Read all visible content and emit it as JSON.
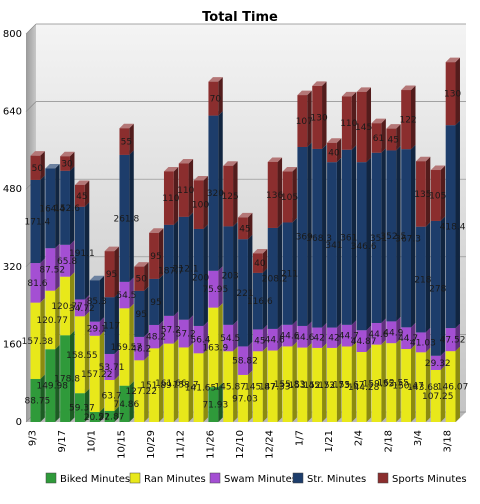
{
  "chart_data": {
    "type": "bar",
    "stacked": true,
    "title": "Total Time",
    "xlabel": "",
    "ylabel": "",
    "ylim": [
      0,
      800
    ],
    "yticks": [
      0,
      160,
      320,
      480,
      640,
      800
    ],
    "grid": true,
    "legend_position": "bottom",
    "tick_labels": [
      "9/3",
      "9/17",
      "10/1",
      "10/15",
      "10/29",
      "11/12",
      "11/26",
      "12/10",
      "12/24",
      "1/7",
      "1/21",
      "2/4",
      "2/18",
      "3/4",
      "3/18"
    ],
    "x": [
      "9/3",
      "9/10",
      "9/17",
      "9/24",
      "10/1",
      "10/8",
      "10/15",
      "10/22",
      "10/29",
      "11/5",
      "11/12",
      "11/19",
      "11/26",
      "12/3",
      "12/10",
      "12/17",
      "12/24",
      "12/31",
      "1/7",
      "1/14",
      "1/21",
      "1/28",
      "2/4",
      "2/11",
      "2/18",
      "2/25",
      "3/4",
      "3/11",
      "3/18"
    ],
    "series": [
      {
        "name": "Biked Minutes",
        "color": "#2f9a3a",
        "values": [
          88.75,
          149.98,
          178.8,
          59.37,
          20.57,
          22.87,
          74.86,
          0,
          0,
          0,
          0,
          0,
          71.93,
          0,
          0,
          0,
          0,
          0,
          0,
          0,
          0,
          0,
          0,
          0,
          0,
          0,
          0,
          0,
          0
        ]
      },
      {
        "name": "Ran Minutes",
        "color": "#e8e81a",
        "values": [
          157.38,
          120.77,
          120.77,
          158.55,
          157.22,
          63.7,
          159.57,
          127.22,
          151.89,
          161.66,
          153.7,
          141.65,
          163.9,
          145.87,
          97.03,
          145.87,
          147.33,
          155.83,
          153.45,
          152.73,
          152.73,
          155.67,
          144.28,
          159.55,
          162.55,
          150.47,
          143.68,
          107.25,
          146.07
        ]
      },
      {
        "name": "Swam Minutes",
        "color": "#a44fd3",
        "values": [
          81.6,
          87.52,
          65.8,
          34.72,
          29.1,
          53.71,
          54.5,
          48.2,
          48.2,
          57.2,
          57.2,
          56.4,
          75.95,
          54.5,
          58.82,
          45.0,
          44.6,
          44.6,
          44.6,
          42.0,
          42.0,
          44.7,
          44.87,
          44.6,
          44.9,
          44.7,
          41.03,
          29.32,
          47.52
        ]
      },
      {
        "name": "Str. Minutes",
        "color": "#1d3d6b",
        "values": [
          171.4,
          164.4,
          152.6,
          191.1,
          85.3,
          117.0,
          261.8,
          95.0,
          95.0,
          187.7,
          212.1,
          200.0,
          320.0,
          203.0,
          221.0,
          116.6,
          208.2,
          211.0,
          369.0,
          368.3,
          341.0,
          361.0,
          346.6,
          351.0,
          352.5,
          367.3,
          218.0,
          278.0,
          418.4
        ]
      },
      {
        "name": "Sports Minutes",
        "color": "#8b2e2e",
        "values": [
          50.0,
          0,
          30.0,
          45.0,
          0,
          95.0,
          55.0,
          50.0,
          95.0,
          110.0,
          110.0,
          100.0,
          70.0,
          125.0,
          45.0,
          40.0,
          136.0,
          105.0,
          107.0,
          130.0,
          40.0,
          110.0,
          145.0,
          61.0,
          45.0,
          122.0,
          135.0,
          105.0,
          130.0
        ]
      }
    ]
  }
}
